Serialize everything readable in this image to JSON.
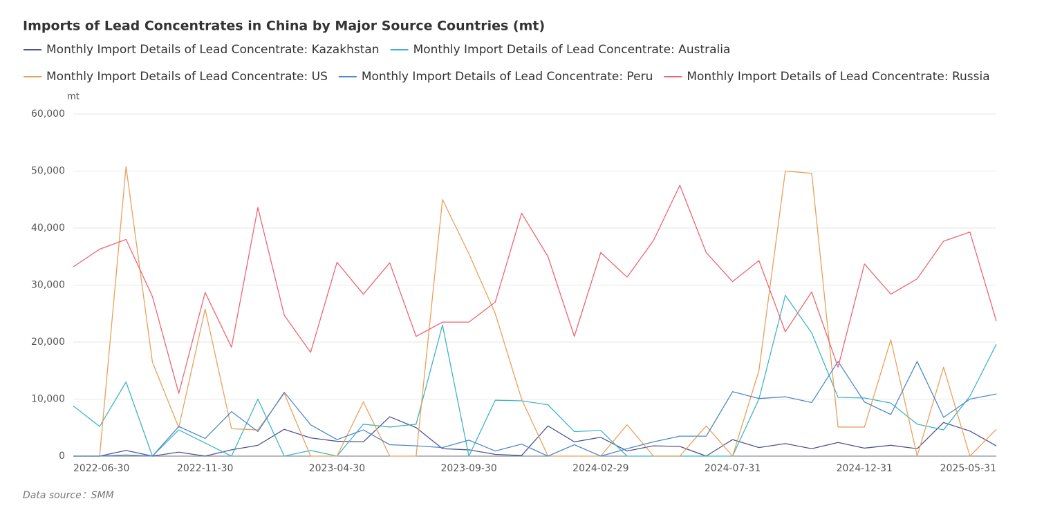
{
  "chart_data": {
    "type": "line",
    "title": "Imports of Lead Concentrates in China by Major Source Countries (mt)",
    "y_unit": "mt",
    "source": "Data source：SMM",
    "categories": [
      "2022-06-30",
      null,
      null,
      null,
      null,
      "2022-11-30",
      null,
      null,
      null,
      null,
      "2023-04-30",
      null,
      null,
      null,
      null,
      "2023-09-30",
      null,
      null,
      null,
      null,
      "2024-02-29",
      null,
      null,
      null,
      null,
      "2024-07-31",
      null,
      null,
      null,
      null,
      "2024-12-31",
      null,
      null,
      null,
      null,
      "2025-05-31"
    ],
    "ylim": [
      0,
      60000
    ],
    "yticks": [
      0,
      {
        "value": 10000,
        "label": "10,000"
      },
      {
        "value": 20000,
        "label": "20,000"
      },
      {
        "value": 30000,
        "label": "30,000"
      },
      {
        "value": 40000,
        "label": "40,000"
      },
      {
        "value": 50000,
        "label": "50,000"
      },
      {
        "value": 60000,
        "label": "60,000"
      }
    ],
    "grid": true,
    "legend": "top-left",
    "series": [
      {
        "name": "Monthly Import Details of Lead Concentrate: Kazakhstan",
        "color": "#4e5391",
        "values": [
          0,
          0,
          1000,
          0,
          700,
          0,
          1100,
          1900,
          4700,
          3200,
          2600,
          2500,
          6900,
          5000,
          1300,
          1100,
          300,
          100,
          5300,
          2500,
          3300,
          900,
          1800,
          1700,
          0,
          2900,
          1500,
          2200,
          1300,
          2400,
          1400,
          1900,
          1300,
          5900,
          4400,
          1800
        ]
      },
      {
        "name": "Monthly Import Details of Lead Concentrate: Australia",
        "color": "#3fb4c4",
        "values": [
          8800,
          5200,
          13000,
          0,
          4600,
          2300,
          0,
          10000,
          0,
          1000,
          0,
          5600,
          5100,
          5600,
          23000,
          0,
          9800,
          9700,
          9000,
          4300,
          4500,
          0,
          0,
          0,
          0,
          0,
          10000,
          28200,
          21600,
          10300,
          10200,
          9300,
          5600,
          4600,
          10500,
          19600
        ]
      },
      {
        "name": "Monthly Import Details of Lead Concentrate: US",
        "color": "#e9a05a",
        "values": [
          0,
          0,
          50800,
          16500,
          5000,
          25800,
          4800,
          4600,
          11000,
          0,
          0,
          9500,
          0,
          0,
          45000,
          35500,
          25000,
          10000,
          0,
          0,
          0,
          5500,
          0,
          0,
          5300,
          0,
          15000,
          50000,
          49600,
          5100,
          5100,
          20400,
          0,
          15600,
          0,
          4700
        ]
      },
      {
        "name": "Monthly Import Details of Lead Concentrate: Peru",
        "color": "#4d88c8",
        "values": [
          0,
          0,
          200,
          0,
          5200,
          3100,
          7800,
          4300,
          11200,
          5500,
          2900,
          4600,
          2000,
          1800,
          1500,
          2800,
          900,
          2100,
          0,
          2000,
          0,
          1300,
          2500,
          3500,
          3500,
          11300,
          10100,
          10400,
          9400,
          16600,
          9500,
          7300,
          16600,
          6800,
          10000,
          10900
        ]
      },
      {
        "name": "Monthly Import Details of Lead Concentrate: Russia",
        "color": "#ee6474",
        "values": [
          33200,
          36300,
          38000,
          28000,
          11000,
          28700,
          19100,
          43600,
          24700,
          18200,
          34000,
          28400,
          33900,
          21000,
          23500,
          23500,
          27000,
          42600,
          35000,
          21000,
          35700,
          31400,
          37800,
          47500,
          35700,
          30600,
          34300,
          21800,
          28800,
          15600,
          33700,
          28400,
          31100,
          37700,
          39300,
          23700
        ]
      }
    ]
  }
}
